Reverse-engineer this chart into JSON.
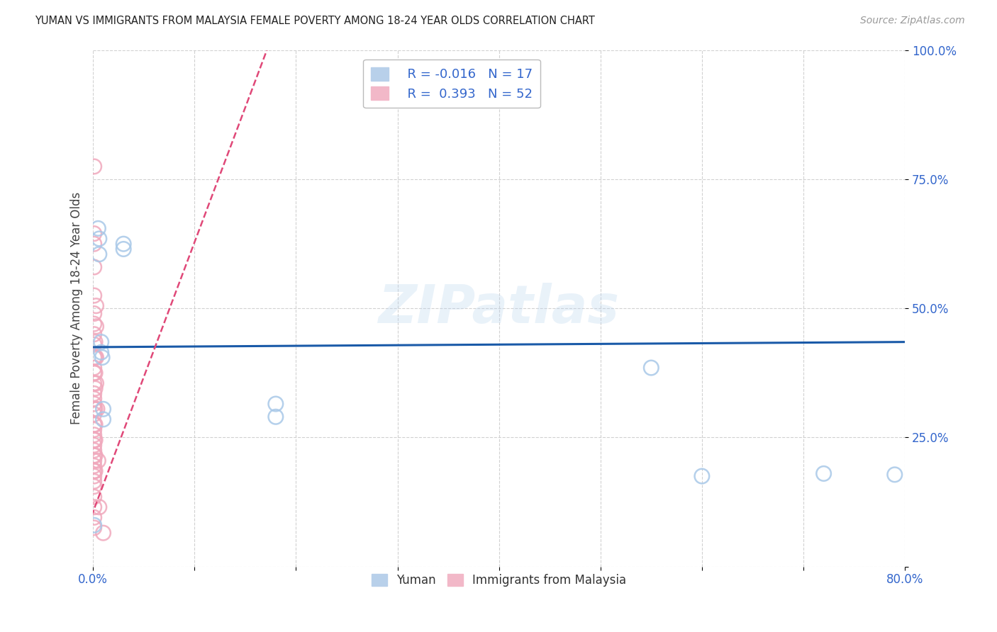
{
  "title": "YUMAN VS IMMIGRANTS FROM MALAYSIA FEMALE POVERTY AMONG 18-24 YEAR OLDS CORRELATION CHART",
  "source": "Source: ZipAtlas.com",
  "ylabel": "Female Poverty Among 18-24 Year Olds",
  "xlim": [
    0.0,
    0.8
  ],
  "ylim": [
    0.0,
    1.0
  ],
  "xticks": [
    0.0,
    0.1,
    0.2,
    0.3,
    0.4,
    0.5,
    0.6,
    0.7,
    0.8
  ],
  "xticklabels": [
    "0.0%",
    "",
    "",
    "",
    "",
    "",
    "",
    "",
    "80.0%"
  ],
  "yticks": [
    0.0,
    0.25,
    0.5,
    0.75,
    1.0
  ],
  "yticklabels": [
    "",
    "25.0%",
    "50.0%",
    "75.0%",
    "100.0%"
  ],
  "legend_R_blue": "-0.016",
  "legend_N_blue": "17",
  "legend_R_pink": "0.393",
  "legend_N_pink": "52",
  "blue_scatter_color": "#a8c8e8",
  "pink_scatter_color": "#f0a8bc",
  "blue_line_color": "#1a5aa8",
  "pink_line_color": "#e04878",
  "grid_color": "#cccccc",
  "watermark": "ZIPatlas",
  "blue_trend_y_start": 0.425,
  "blue_trend_y_end": 0.435,
  "pink_trend_x": [
    -0.005,
    0.175
  ],
  "pink_trend_y": [
    0.08,
    1.02
  ],
  "yuman_points": [
    [
      0.001,
      0.08
    ],
    [
      0.005,
      0.655
    ],
    [
      0.006,
      0.635
    ],
    [
      0.006,
      0.605
    ],
    [
      0.008,
      0.435
    ],
    [
      0.008,
      0.415
    ],
    [
      0.009,
      0.405
    ],
    [
      0.01,
      0.305
    ],
    [
      0.01,
      0.285
    ],
    [
      0.03,
      0.625
    ],
    [
      0.03,
      0.615
    ],
    [
      0.18,
      0.315
    ],
    [
      0.18,
      0.29
    ],
    [
      0.55,
      0.385
    ],
    [
      0.6,
      0.175
    ],
    [
      0.72,
      0.18
    ],
    [
      0.79,
      0.178
    ]
  ],
  "malaysia_points": [
    [
      0.001,
      0.775
    ],
    [
      0.001,
      0.645
    ],
    [
      0.001,
      0.625
    ],
    [
      0.001,
      0.58
    ],
    [
      0.001,
      0.525
    ],
    [
      0.001,
      0.49
    ],
    [
      0.001,
      0.47
    ],
    [
      0.001,
      0.45
    ],
    [
      0.001,
      0.43
    ],
    [
      0.001,
      0.405
    ],
    [
      0.001,
      0.385
    ],
    [
      0.001,
      0.375
    ],
    [
      0.001,
      0.355
    ],
    [
      0.001,
      0.335
    ],
    [
      0.001,
      0.325
    ],
    [
      0.001,
      0.315
    ],
    [
      0.001,
      0.305
    ],
    [
      0.001,
      0.295
    ],
    [
      0.001,
      0.275
    ],
    [
      0.001,
      0.265
    ],
    [
      0.001,
      0.255
    ],
    [
      0.001,
      0.245
    ],
    [
      0.001,
      0.235
    ],
    [
      0.001,
      0.225
    ],
    [
      0.001,
      0.215
    ],
    [
      0.001,
      0.205
    ],
    [
      0.001,
      0.195
    ],
    [
      0.001,
      0.185
    ],
    [
      0.001,
      0.175
    ],
    [
      0.001,
      0.165
    ],
    [
      0.001,
      0.155
    ],
    [
      0.001,
      0.135
    ],
    [
      0.001,
      0.115
    ],
    [
      0.001,
      0.095
    ],
    [
      0.001,
      0.075
    ],
    [
      0.002,
      0.435
    ],
    [
      0.002,
      0.405
    ],
    [
      0.002,
      0.375
    ],
    [
      0.002,
      0.345
    ],
    [
      0.002,
      0.305
    ],
    [
      0.002,
      0.275
    ],
    [
      0.002,
      0.245
    ],
    [
      0.002,
      0.215
    ],
    [
      0.002,
      0.185
    ],
    [
      0.003,
      0.505
    ],
    [
      0.003,
      0.465
    ],
    [
      0.003,
      0.405
    ],
    [
      0.003,
      0.355
    ],
    [
      0.004,
      0.305
    ],
    [
      0.005,
      0.205
    ],
    [
      0.006,
      0.115
    ],
    [
      0.01,
      0.065
    ]
  ]
}
